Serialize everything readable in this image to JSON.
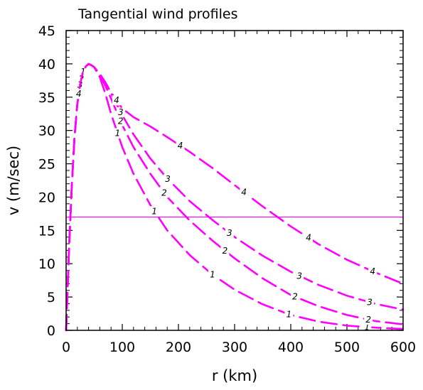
{
  "chart_data": {
    "type": "line",
    "title": "Tangential wind profiles",
    "xlabel": "r (km)",
    "ylabel": "v (m/sec)",
    "xlim": [
      0,
      600
    ],
    "ylim": [
      0,
      45
    ],
    "xticks": [
      0,
      100,
      200,
      300,
      400,
      500,
      600
    ],
    "yticks": [
      0,
      5,
      10,
      15,
      20,
      25,
      30,
      35,
      40,
      45
    ],
    "grid": false,
    "legend": "none",
    "line_color": "#ff00ff",
    "reference_line": {
      "y": 17
    },
    "series": [
      {
        "label": "1",
        "x": [
          0,
          5,
          10,
          15,
          20,
          25,
          30,
          35,
          40,
          45,
          50,
          60,
          70,
          80,
          100,
          120,
          150,
          180,
          220,
          260,
          300,
          350,
          400,
          450,
          500,
          550,
          600
        ],
        "y": [
          0,
          12,
          21.5,
          29,
          34,
          37,
          38.8,
          39.6,
          40,
          39.8,
          39.5,
          38,
          35.5,
          32.5,
          27.5,
          23.5,
          18.8,
          15,
          11.3,
          8.4,
          6.1,
          3.9,
          2.3,
          1.3,
          0.7,
          0.4,
          0.2
        ]
      },
      {
        "label": "2",
        "x": [
          0,
          5,
          10,
          15,
          20,
          25,
          30,
          35,
          40,
          45,
          50,
          60,
          70,
          80,
          100,
          120,
          150,
          180,
          220,
          260,
          300,
          350,
          400,
          450,
          500,
          550,
          600
        ],
        "y": [
          0,
          12,
          21.5,
          29,
          34,
          37,
          38.8,
          39.6,
          40,
          39.8,
          39.5,
          38.3,
          36.7,
          34.8,
          30.8,
          27.5,
          23.5,
          20,
          16.5,
          13.5,
          10.8,
          7.8,
          5.3,
          3.6,
          2.3,
          1.4,
          0.9
        ]
      },
      {
        "label": "3",
        "x": [
          0,
          5,
          10,
          15,
          20,
          25,
          30,
          35,
          40,
          45,
          50,
          60,
          70,
          80,
          100,
          120,
          150,
          180,
          220,
          260,
          300,
          350,
          400,
          450,
          500,
          550,
          600
        ],
        "y": [
          0,
          12,
          21.5,
          29,
          34,
          37,
          38.8,
          39.6,
          40,
          39.8,
          39.5,
          38.4,
          37.2,
          35.6,
          32.3,
          29.4,
          25.8,
          22.8,
          19.4,
          16.6,
          14,
          11.2,
          8.8,
          6.8,
          5.2,
          4,
          3.1
        ]
      },
      {
        "label": "4",
        "x": [
          0,
          5,
          10,
          15,
          20,
          25,
          30,
          35,
          40,
          45,
          50,
          60,
          70,
          80,
          100,
          120,
          150,
          180,
          220,
          260,
          300,
          350,
          400,
          450,
          500,
          550,
          600
        ],
        "y": [
          0,
          12,
          21.5,
          29,
          34,
          37,
          38.8,
          39.6,
          40,
          39.8,
          39.5,
          38.5,
          37.2,
          35.7,
          33.3,
          32,
          30.6,
          29,
          26.8,
          24.4,
          21.8,
          18.6,
          15.6,
          12.9,
          10.6,
          8.7,
          7
        ]
      }
    ]
  }
}
